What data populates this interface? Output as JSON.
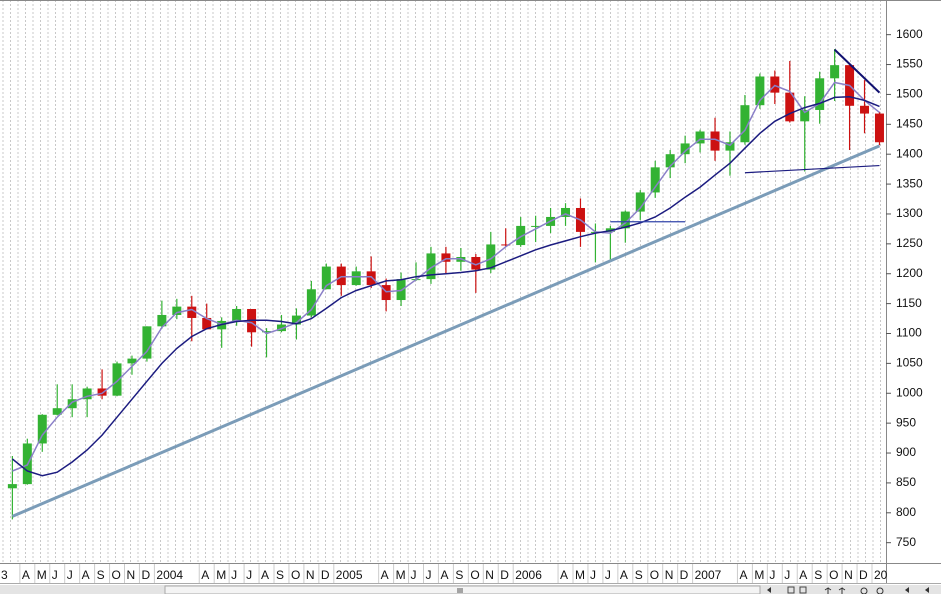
{
  "chart_data": {
    "type": "candlestick",
    "categories": [
      "3",
      null,
      null,
      "A",
      "M",
      "J",
      "J",
      "A",
      "S",
      "O",
      "N",
      "D",
      "2004",
      null,
      null,
      "A",
      "M",
      "J",
      "J",
      "A",
      "S",
      "O",
      "N",
      "D",
      "2005",
      null,
      null,
      "A",
      "M",
      "J",
      "J",
      "A",
      "S",
      "O",
      "N",
      "D",
      "2006",
      null,
      null,
      "A",
      "M",
      "J",
      "J",
      "A",
      "S",
      "O",
      "N",
      "D",
      "2007",
      null,
      null,
      "A",
      "M",
      "J",
      "J",
      "A",
      "S",
      "O",
      "N",
      "D",
      "20"
    ],
    "open": [
      null,
      null,
      841,
      848,
      916,
      964,
      975,
      990,
      1008,
      996,
      1050,
      1058,
      1112,
      1131,
      1145,
      1126,
      1107,
      1121,
      1141,
      1102,
      1104,
      1115,
      1130,
      1174,
      1212,
      1181,
      1204,
      1181,
      1156,
      1191,
      1191,
      1234,
      1220,
      1228,
      1207,
      1249,
      1248,
      1280,
      1280,
      1295,
      1310,
      1270,
      1270,
      1276,
      1304,
      1336,
      1378,
      1400,
      1418,
      1438,
      1406,
      1420,
      1482,
      1530,
      1503,
      1455,
      1474,
      1527,
      1549,
      1481,
      1468
    ],
    "high": [
      null,
      null,
      895,
      924,
      965,
      1015,
      1015,
      1011,
      1040,
      1053,
      1063,
      1112,
      1155,
      1158,
      1163,
      1150,
      1127,
      1146,
      1141,
      1109,
      1131,
      1142,
      1188,
      1217,
      1217,
      1212,
      1229,
      1192,
      1202,
      1219,
      1245,
      1245,
      1243,
      1233,
      1270,
      1276,
      1295,
      1297,
      1310,
      1318,
      1326,
      1284,
      1280,
      1306,
      1340,
      1389,
      1407,
      1431,
      1441,
      1461,
      1438,
      1499,
      1535,
      1540,
      1556,
      1497,
      1538,
      1576,
      1550,
      1524,
      1471
    ],
    "low": [
      null,
      null,
      789,
      847,
      902,
      963,
      960,
      960,
      990,
      995,
      1031,
      1053,
      1108,
      1124,
      1087,
      1107,
      1076,
      1113,
      1078,
      1060,
      1102,
      1090,
      1127,
      1174,
      1163,
      1180,
      1176,
      1137,
      1146,
      1188,
      1183,
      1201,
      1205,
      1168,
      1201,
      1245,
      1245,
      1253,
      1268,
      1280,
      1245,
      1219,
      1224,
      1252,
      1290,
      1327,
      1360,
      1385,
      1403,
      1389,
      1364,
      1416,
      1476,
      1484,
      1453,
      1371,
      1451,
      1489,
      1407,
      1435,
      1415
    ],
    "close": [
      null,
      null,
      848,
      916,
      964,
      975,
      990,
      1008,
      996,
      1050,
      1058,
      1112,
      1131,
      1145,
      1126,
      1107,
      1121,
      1141,
      1102,
      1104,
      1115,
      1130,
      1174,
      1212,
      1181,
      1204,
      1181,
      1156,
      1191,
      1191,
      1234,
      1220,
      1228,
      1207,
      1249,
      1248,
      1280,
      1280,
      1295,
      1310,
      1270,
      1270,
      1276,
      1304,
      1336,
      1378,
      1400,
      1418,
      1438,
      1406,
      1420,
      1482,
      1530,
      1503,
      1455,
      1474,
      1527,
      1549,
      1481,
      1468,
      1420
    ],
    "up_color": "#33b233",
    "down_color": "#cc1111",
    "series": [
      {
        "color": "#8a7fc8",
        "values": [
          null,
          null,
          870,
          880,
          930,
          960,
          985,
          995,
          1000,
          1020,
          1045,
          1070,
          1110,
          1135,
          1140,
          1125,
          1115,
          1122,
          1118,
          1100,
          1108,
          1118,
          1140,
          1180,
          1195,
          1195,
          1195,
          1170,
          1172,
          1190,
          1210,
          1225,
          1225,
          1215,
          1225,
          1245,
          1262,
          1275,
          1288,
          1300,
          1290,
          1270,
          1268,
          1285,
          1310,
          1345,
          1380,
          1405,
          1425,
          1425,
          1415,
          1440,
          1490,
          1515,
          1505,
          1470,
          1485,
          1520,
          1515,
          1490,
          1470
        ]
      },
      {
        "color": "#1c1c80",
        "values": [
          null,
          null,
          890,
          870,
          862,
          868,
          885,
          905,
          930,
          960,
          990,
          1020,
          1050,
          1075,
          1095,
          1108,
          1115,
          1120,
          1122,
          1122,
          1120,
          1116,
          1125,
          1142,
          1160,
          1172,
          1180,
          1188,
          1190,
          1195,
          1198,
          1200,
          1202,
          1205,
          1210,
          1220,
          1230,
          1240,
          1248,
          1255,
          1262,
          1268,
          1272,
          1278,
          1285,
          1295,
          1310,
          1328,
          1345,
          1365,
          1385,
          1410,
          1435,
          1455,
          1468,
          1478,
          1485,
          1495,
          1496,
          1490,
          1480
        ]
      }
    ],
    "trendlines": [
      {
        "color": "#7b9cb8",
        "start": {
          "x": "2003-03",
          "y": 794
        },
        "end": {
          "x": "2008-01",
          "y": 1414
        }
      },
      {
        "color": "#101070",
        "start": {
          "x": "2007-10",
          "y": 1575
        },
        "end": {
          "x": "2008-01",
          "y": 1503
        }
      },
      {
        "color": "#1c1c80",
        "start": {
          "x": "2007-04",
          "y": 1369
        },
        "end": {
          "x": "2008-01",
          "y": 1381
        }
      },
      {
        "color": "#3344aa",
        "start": {
          "x": "2006-07",
          "y": 1287
        },
        "end": {
          "x": "2006-12",
          "y": 1287
        }
      }
    ],
    "ylim": [
      716,
      1658
    ],
    "yticks": [
      750,
      800,
      850,
      900,
      950,
      1000,
      1050,
      1100,
      1150,
      1200,
      1250,
      1300,
      1350,
      1400,
      1450,
      1500,
      1550,
      1600
    ]
  }
}
